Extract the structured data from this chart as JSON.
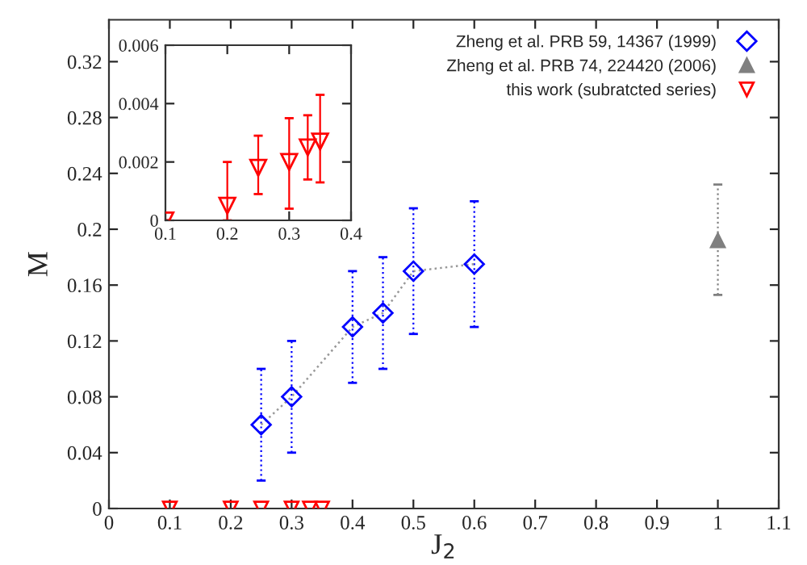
{
  "chart_data": [
    {
      "type": "scatter",
      "xlabel": "J$_{2}$",
      "ylabel": "M",
      "xlim": [
        0,
        1.1
      ],
      "ylim": [
        0,
        0.35
      ],
      "xticks": [
        0,
        0.1,
        0.2,
        0.3,
        0.4,
        0.5,
        0.6,
        0.7,
        0.8,
        0.9,
        1,
        1.1
      ],
      "yticks": [
        0,
        0.04,
        0.08,
        0.12,
        0.16,
        0.2,
        0.24,
        0.28,
        0.32
      ],
      "legend": "top right",
      "grid": false,
      "series": [
        {
          "name": "Zheng et al. PRB 59, 14367 (1999)",
          "type": "line",
          "marker": "diamond",
          "line_style": "dotted",
          "color": "#0000ff",
          "x": [
            0.25,
            0.3,
            0.4,
            0.45,
            0.5,
            0.6
          ],
          "values": [
            0.06,
            0.08,
            0.13,
            0.14,
            0.17,
            0.175
          ],
          "errors": [
            0.04,
            0.04,
            0.04,
            0.04,
            0.045,
            0.045
          ]
        },
        {
          "name": "Zheng et al. PRB 74, 224420 (2006)",
          "marker": "triangle",
          "color": "#808080",
          "x": [
            1
          ],
          "values": [
            0.192
          ],
          "errors": [
            [
              0.153,
              0.232
            ]
          ]
        },
        {
          "name": "this work (subratcted series)",
          "marker": "triangle_down",
          "color": "#ff0000",
          "x": [
            0.1,
            0.2,
            0.25,
            0.3,
            0.33,
            0.35
          ],
          "values": [
            0,
            0,
            0,
            0,
            0,
            0
          ]
        }
      ]
    },
    {
      "type": "scatter",
      "xlim": [
        0.1,
        0.4
      ],
      "ylim": [
        0,
        0.006
      ],
      "xticks": [
        0.1,
        0.2,
        0.3,
        0.4
      ],
      "yticks": [
        0,
        0.002,
        0.004,
        0.006
      ],
      "grid": false,
      "series": [
        {
          "marker": "triangle_down",
          "color": "#ff0000",
          "x": [
            0.1,
            0.2,
            0.25,
            0.3,
            0.33,
            0.35
          ],
          "values": [
            0,
            0.0005,
            0.0018,
            0.002,
            0.0025,
            0.0027
          ],
          "errors": [
            null,
            [
              0,
              0.002
            ],
            [
              0.0009,
              0.0029
            ],
            [
              0.0004,
              0.0035
            ],
            [
              0.0014,
              0.0036
            ],
            [
              0.0013,
              0.0043
            ]
          ]
        }
      ]
    }
  ]
}
